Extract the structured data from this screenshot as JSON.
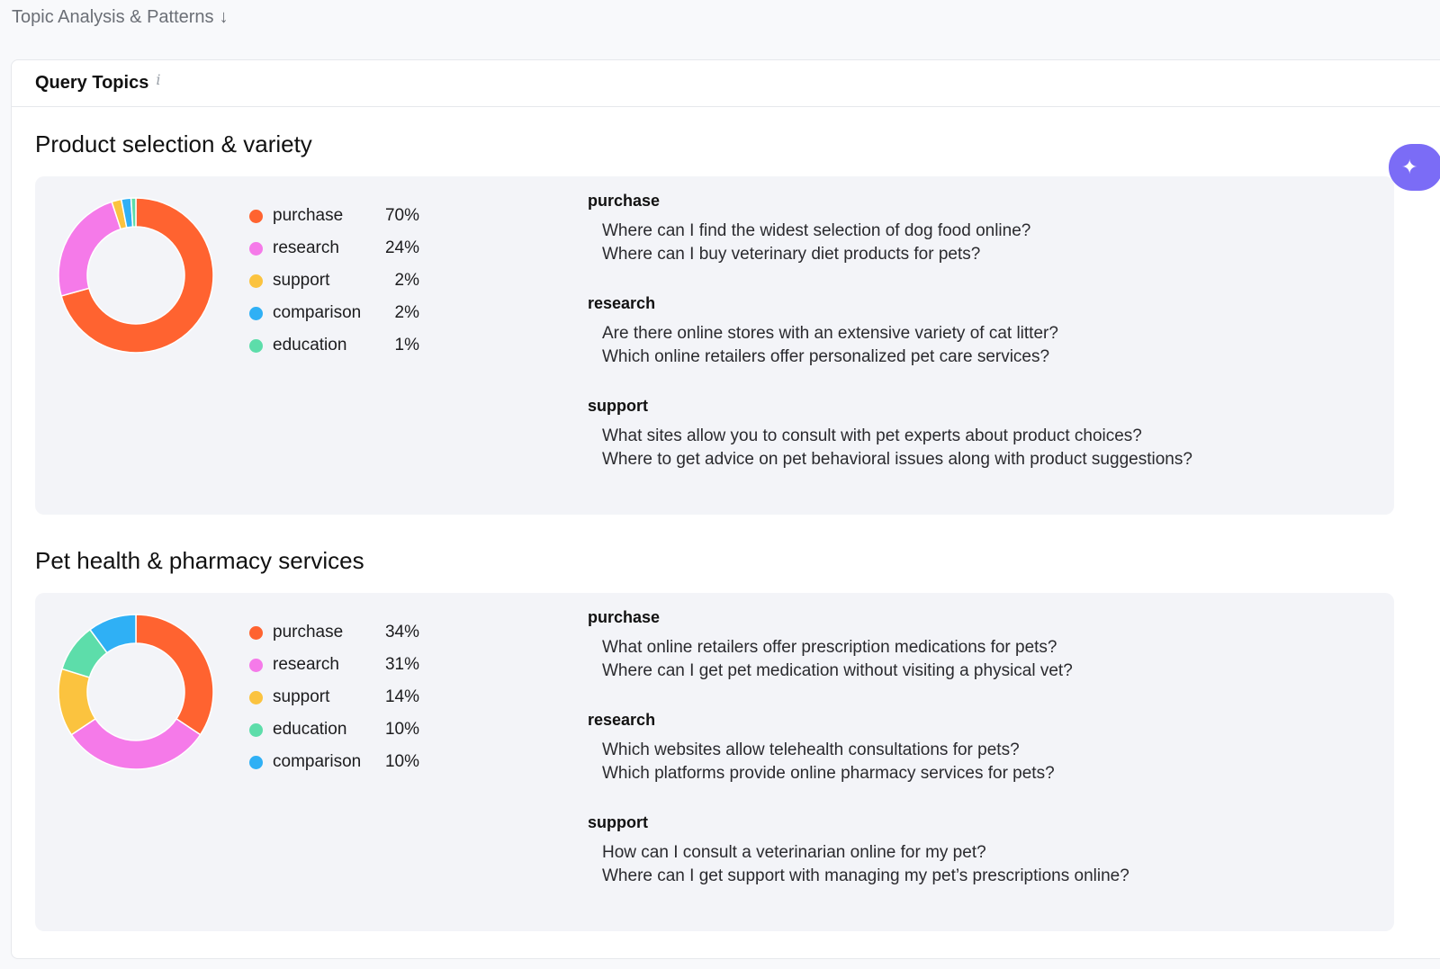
{
  "page_header": {
    "title": "Topic Analysis & Patterns",
    "arrow": "↓"
  },
  "card": {
    "title": "Query Topics",
    "info": "i"
  },
  "assist_icon": "sparkle-icon",
  "sections": [
    {
      "title": "Product selection & variety",
      "chart_data": {
        "type": "pie",
        "categories": [
          "purchase",
          "research",
          "support",
          "comparison",
          "education"
        ],
        "values": [
          70,
          24,
          2,
          2,
          1
        ],
        "labels": [
          "70%",
          "24%",
          "2%",
          "2%",
          "1%"
        ],
        "colors": [
          "#ff6330",
          "#f57ae9",
          "#fbc33f",
          "#2fb0f5",
          "#5dddaa"
        ]
      },
      "groups": [
        {
          "title": "purchase",
          "queries": [
            "Where can I find the widest selection of dog food online?",
            "Where can I buy veterinary diet products for pets?"
          ]
        },
        {
          "title": "research",
          "queries": [
            "Are there online stores with an extensive variety of cat litter?",
            "Which online retailers offer personalized pet care services?"
          ]
        },
        {
          "title": "support",
          "queries": [
            "What sites allow you to consult with pet experts about product choices?",
            "Where to get advice on pet behavioral issues along with product suggestions?"
          ]
        }
      ]
    },
    {
      "title": "Pet health & pharmacy services",
      "chart_data": {
        "type": "pie",
        "categories": [
          "purchase",
          "research",
          "support",
          "education",
          "comparison"
        ],
        "values": [
          34,
          31,
          14,
          10,
          10
        ],
        "labels": [
          "34%",
          "31%",
          "14%",
          "10%",
          "10%"
        ],
        "colors": [
          "#ff6330",
          "#f57ae9",
          "#fbc33f",
          "#5dddaa",
          "#2fb0f5"
        ]
      },
      "groups": [
        {
          "title": "purchase",
          "queries": [
            "What online retailers offer prescription medications for pets?",
            "Where can I get pet medication without visiting a physical vet?"
          ]
        },
        {
          "title": "research",
          "queries": [
            "Which websites allow telehealth consultations for pets?",
            "Which platforms provide online pharmacy services for pets?"
          ]
        },
        {
          "title": "support",
          "queries": [
            "How can I consult a veterinarian online for my pet?",
            "Where can I get support with managing my pet’s prescriptions online?"
          ]
        }
      ]
    }
  ]
}
